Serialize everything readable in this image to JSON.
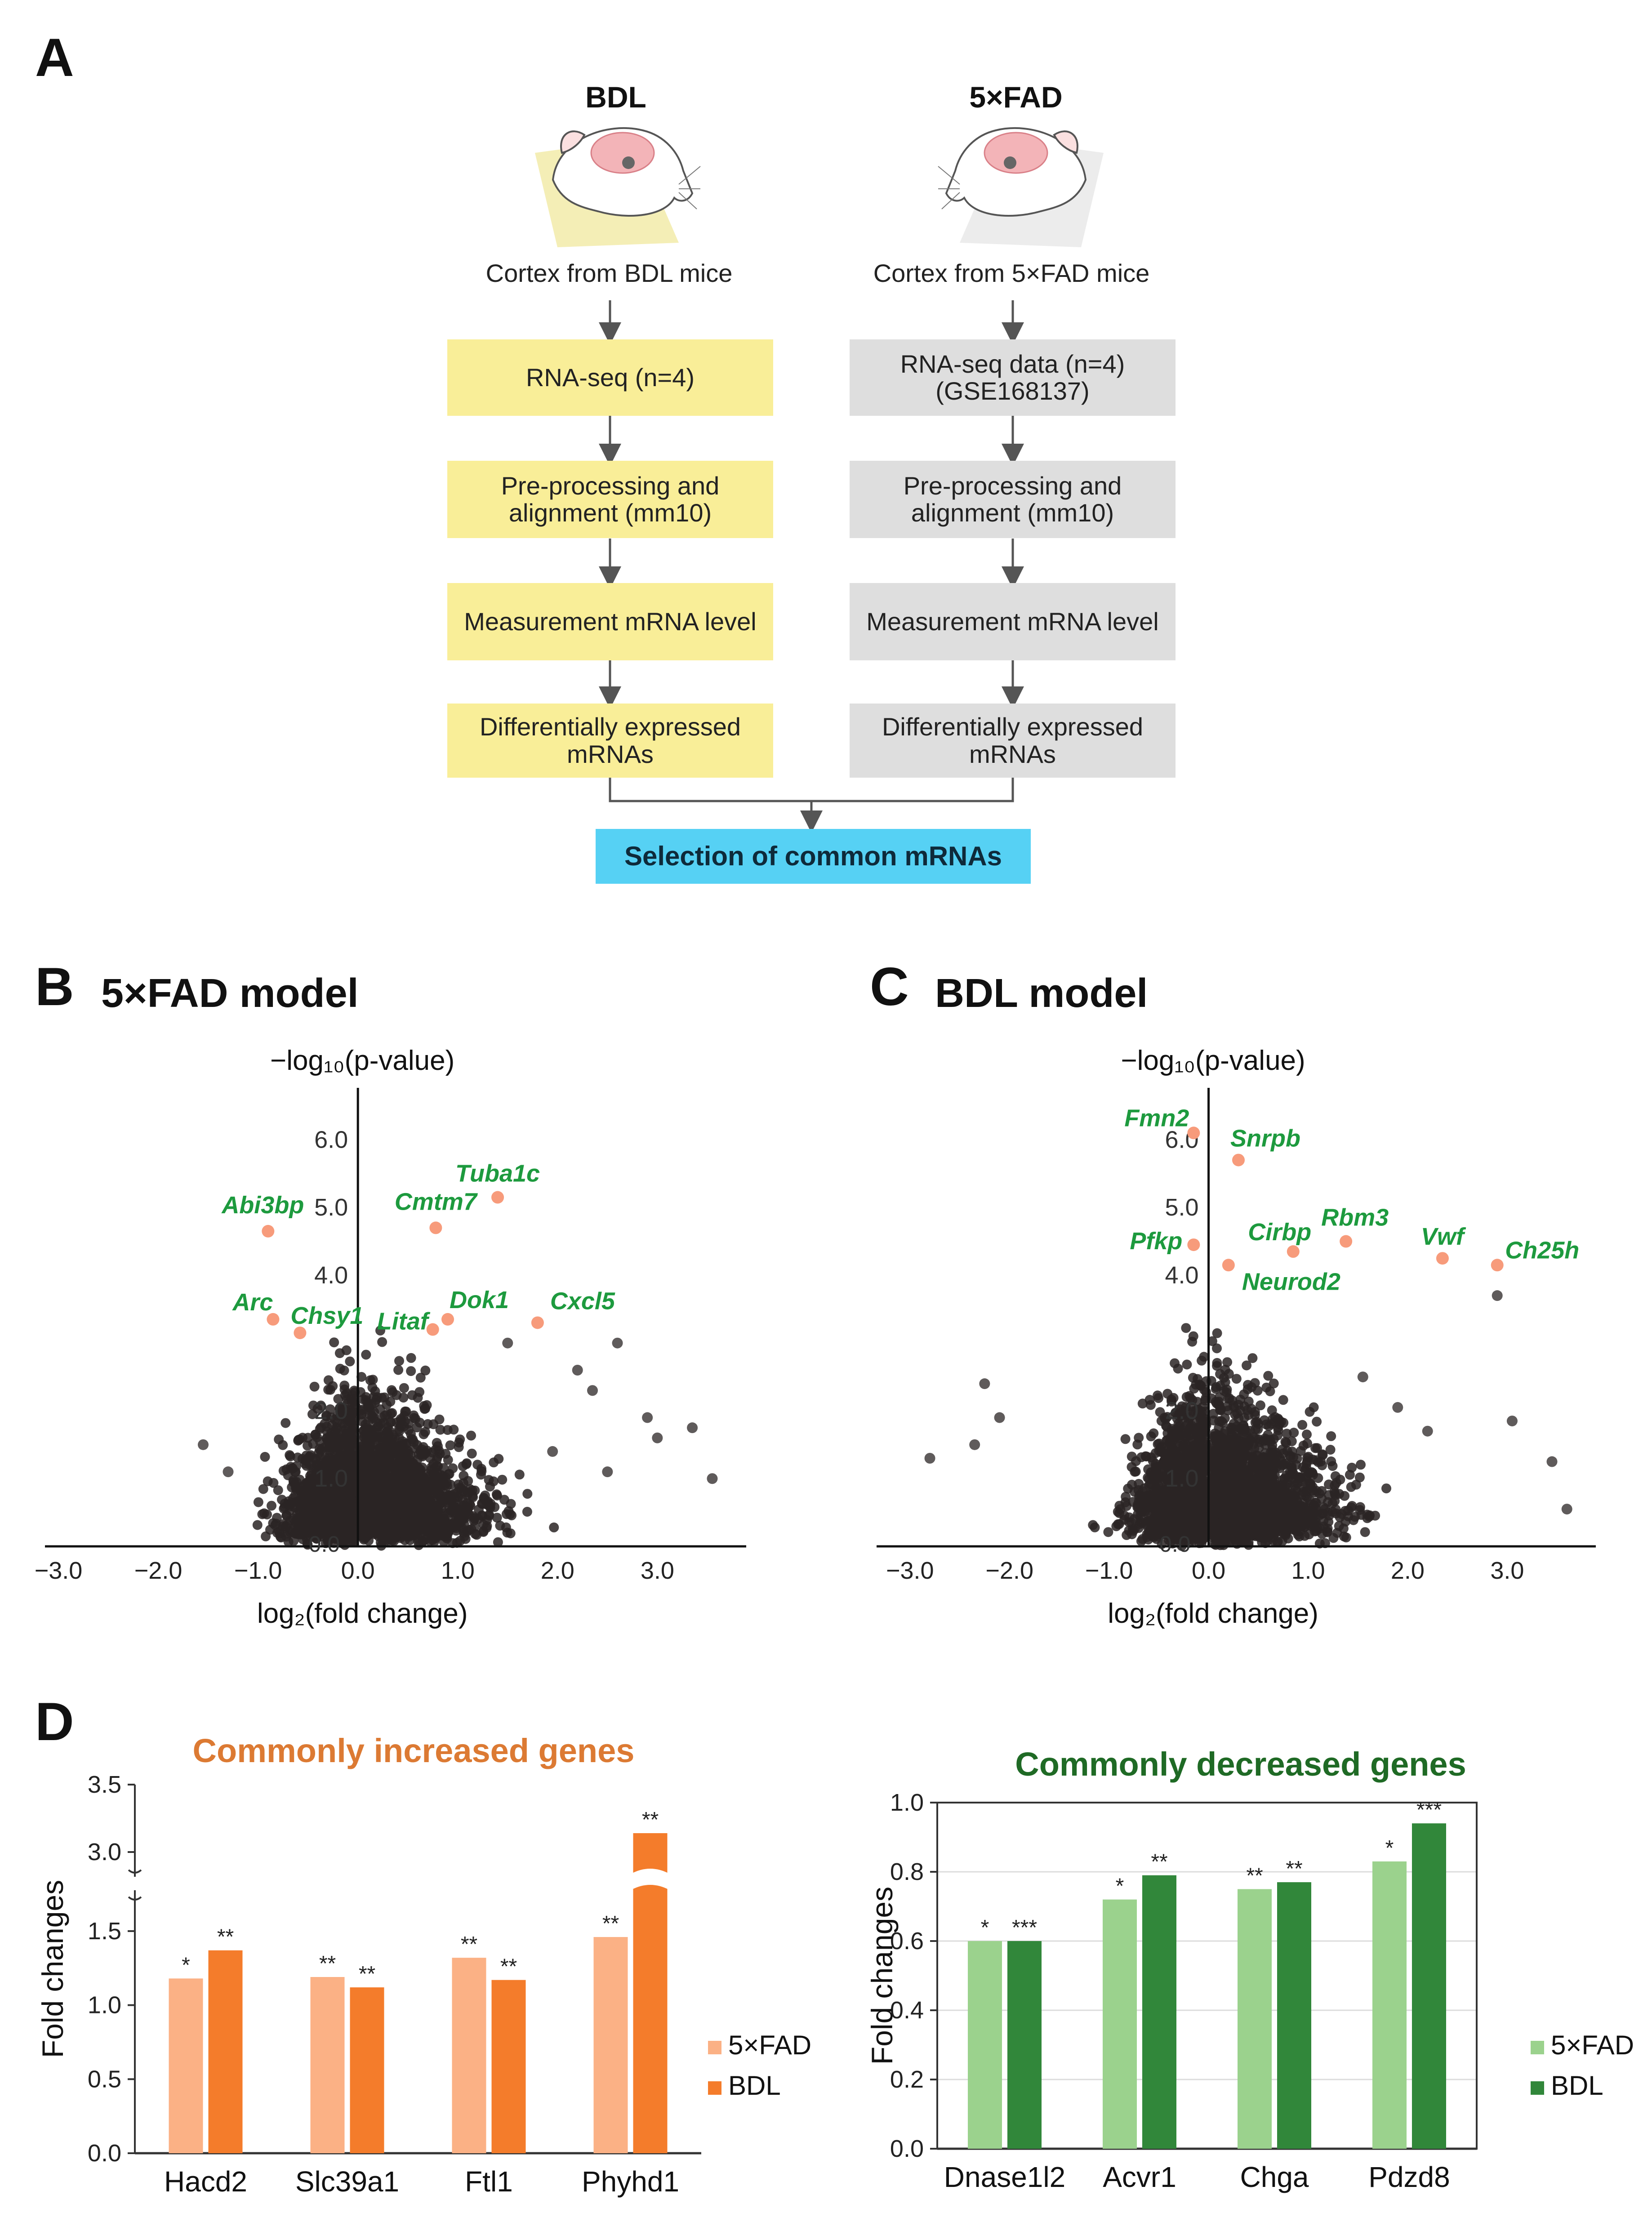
{
  "panels": {
    "a": {
      "letter": "A"
    },
    "b": {
      "letter": "B",
      "title": "5×FAD model"
    },
    "c": {
      "letter": "C",
      "title": "BDL model"
    },
    "d": {
      "letter": "D"
    }
  },
  "flow": {
    "left": {
      "heading": "BDL",
      "caption": "Cortex from BDL mice",
      "steps": [
        "RNA-seq (n=4)",
        "Pre-processing and\nalignment (mm10)",
        "Measurement mRNA level",
        "Differentially expressed\nmRNAs"
      ]
    },
    "right": {
      "heading": "5×FAD",
      "caption": "Cortex from 5×FAD mice",
      "steps": [
        "RNA-seq data (n=4)\n(GSE168137)",
        "Pre-processing and\nalignment (mm10)",
        "Measurement mRNA level",
        "Differentially expressed\nmRNAs"
      ]
    },
    "final": "Selection of common mRNAs"
  },
  "chart_data": [
    {
      "type": "scatter",
      "panel": "B",
      "title": "5×FAD model",
      "xlabel": "log₂(fold change)",
      "ylabel": "−log₁₀(p-value)",
      "xlim": [
        -3.0,
        3.8
      ],
      "ylim": [
        0.0,
        6.5
      ],
      "xticks": [
        "−3.0",
        "−2.0",
        "−1.0",
        "0.0",
        "1.0",
        "2.0",
        "3.0"
      ],
      "xtick_values": [
        -3.0,
        -2.0,
        -1.0,
        0.0,
        1.0,
        2.0,
        3.0
      ],
      "yticks": [
        "1.0",
        "2.0",
        "4.0",
        "5.0",
        "6.0"
      ],
      "ytick_values": [
        1.0,
        2.0,
        4.0,
        5.0,
        6.0
      ],
      "cloud": {
        "seed": 7,
        "n": 2600,
        "left_n": 1100
      },
      "outliers": [
        {
          "x": 3.35,
          "y": 1.75
        },
        {
          "x": 3.55,
          "y": 1.0
        },
        {
          "x": 3.0,
          "y": 1.6
        },
        {
          "x": 2.9,
          "y": 1.9
        },
        {
          "x": -1.55,
          "y": 1.5
        },
        {
          "x": 2.6,
          "y": 3.0
        },
        {
          "x": 2.5,
          "y": 1.1
        },
        {
          "x": -1.3,
          "y": 1.1
        },
        {
          "x": 2.2,
          "y": 2.6
        },
        {
          "x": 1.95,
          "y": 1.4
        },
        {
          "x": 2.35,
          "y": 2.3
        },
        {
          "x": 1.5,
          "y": 3.0
        }
      ],
      "highlights": [
        {
          "label": "Tuba1c",
          "x": 1.4,
          "y": 5.15
        },
        {
          "label": "Abi3bp",
          "x": -0.9,
          "y": 4.65
        },
        {
          "label": "Cmtm7",
          "x": 0.78,
          "y": 4.7
        },
        {
          "label": "Arc",
          "x": -0.85,
          "y": 3.35
        },
        {
          "label": "Chsy1",
          "x": -0.58,
          "y": 3.15
        },
        {
          "label": "Litaf",
          "x": 0.75,
          "y": 3.2
        },
        {
          "label": "Dok1",
          "x": 0.9,
          "y": 3.35
        },
        {
          "label": "Cxcl5",
          "x": 1.8,
          "y": 3.3
        }
      ]
    },
    {
      "type": "scatter",
      "panel": "C",
      "title": "BDL model",
      "xlabel": "log₂(fold change)",
      "ylabel": "−log₁₀(p-value)",
      "xlim": [
        -3.2,
        3.8
      ],
      "ylim": [
        0.0,
        6.5
      ],
      "xticks": [
        "−3.0",
        "−2.0",
        "−1.0",
        "0.0",
        "1.0",
        "2.0",
        "3.0"
      ],
      "xtick_values": [
        -3.0,
        -2.0,
        -1.0,
        0.0,
        1.0,
        2.0,
        3.0
      ],
      "yticks": [
        "1.0",
        "2.0",
        "4.0",
        "5.0",
        "6.0"
      ],
      "ytick_values": [
        1.0,
        2.0,
        4.0,
        5.0,
        6.0
      ],
      "cloud": {
        "seed": 21,
        "n": 2900,
        "left_n": 1300
      },
      "outliers": [
        {
          "x": -2.8,
          "y": 1.3
        },
        {
          "x": -2.25,
          "y": 2.4
        },
        {
          "x": -2.1,
          "y": 1.9
        },
        {
          "x": -2.35,
          "y": 1.5
        },
        {
          "x": 3.6,
          "y": 0.55
        },
        {
          "x": 3.45,
          "y": 1.25
        },
        {
          "x": 3.05,
          "y": 1.85
        },
        {
          "x": 2.9,
          "y": 3.7
        },
        {
          "x": 1.9,
          "y": 2.05
        },
        {
          "x": 2.2,
          "y": 1.7
        },
        {
          "x": 1.55,
          "y": 2.5
        }
      ],
      "highlights": [
        {
          "label": "Fmn2",
          "x": -0.15,
          "y": 6.1
        },
        {
          "label": "Snrpb",
          "x": 0.3,
          "y": 5.7
        },
        {
          "label": "Pfkp",
          "x": -0.15,
          "y": 4.45
        },
        {
          "label": "Cirbp",
          "x": 0.85,
          "y": 4.35
        },
        {
          "label": "Rbm3",
          "x": 1.38,
          "y": 4.5
        },
        {
          "label": "Vwf",
          "x": 2.35,
          "y": 4.25
        },
        {
          "label": "Ch25h",
          "x": 2.9,
          "y": 4.15
        },
        {
          "label": "Neurod2",
          "x": 0.2,
          "y": 4.15
        }
      ]
    },
    {
      "type": "bar",
      "panel": "D",
      "title": "Commonly increased genes",
      "ylabel": "Fold changes",
      "ylim_lower": [
        0.0,
        1.7
      ],
      "ylim_upper": [
        2.9,
        3.5
      ],
      "yticks_lower": [
        "0.0",
        "0.5",
        "1.0",
        "1.5"
      ],
      "ytick_values_lower": [
        0.0,
        0.5,
        1.0,
        1.5
      ],
      "yticks_upper": [
        "3.0",
        "3.5"
      ],
      "ytick_values_upper": [
        3.0,
        3.5
      ],
      "categories": [
        "Hacd2",
        "Slc39a1",
        "Ftl1",
        "Phyhd1"
      ],
      "series": [
        {
          "name": "5×FAD",
          "color": "#fbb185",
          "values": [
            1.18,
            1.19,
            1.32,
            1.46
          ],
          "significance": [
            "*",
            "**",
            "**",
            "**"
          ]
        },
        {
          "name": "BDL",
          "color": "#f47c2b",
          "values": [
            1.37,
            1.12,
            1.17,
            3.14
          ],
          "significance": [
            "**",
            "**",
            "**",
            "**"
          ]
        }
      ]
    },
    {
      "type": "bar",
      "panel": "D",
      "title": "Commonly decreased genes",
      "ylabel": "Fold changes",
      "ylim": [
        0.0,
        1.0
      ],
      "yticks": [
        "0.0",
        "0.2",
        "0.4",
        "0.6",
        "0.8",
        "1.0"
      ],
      "ytick_values": [
        0.0,
        0.2,
        0.4,
        0.6,
        0.8,
        1.0
      ],
      "categories": [
        "Dnase1l2",
        "Acvr1",
        "Chga",
        "Pdzd8"
      ],
      "series": [
        {
          "name": "5×FAD",
          "color": "#9bd28d",
          "values": [
            0.6,
            0.72,
            0.75,
            0.83
          ],
          "significance": [
            "*",
            "*",
            "**",
            "*"
          ]
        },
        {
          "name": "BDL",
          "color": "#31873a",
          "values": [
            0.6,
            0.79,
            0.77,
            0.94
          ],
          "significance": [
            "***",
            "**",
            "**",
            "***"
          ]
        }
      ]
    }
  ],
  "colors": {
    "highlight_dot": "#f79b7b",
    "highlight_label": "#1d9a3e",
    "scatter_dot": "#2a2424",
    "yellow_box": "#f9ee98",
    "gray_box": "#dedede",
    "cyan_box": "#56d1f4",
    "increased_title": "#dc7a33",
    "decreased_title": "#1f6a25"
  }
}
